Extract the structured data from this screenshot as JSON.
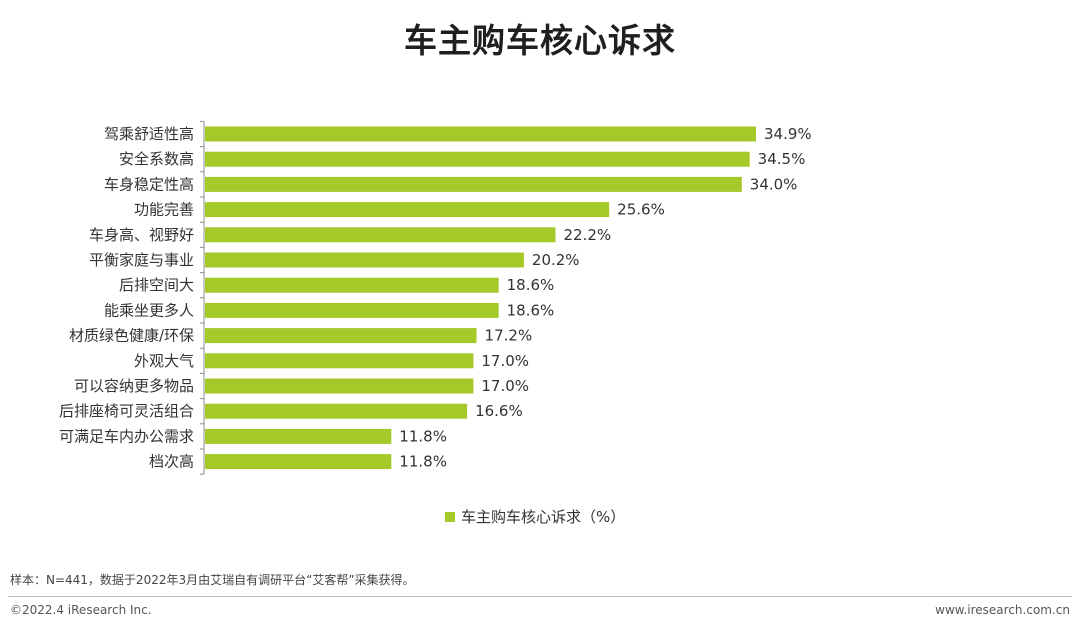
{
  "page": {
    "title": "车主购车核心诉求",
    "source_note": "样本：N=441，数据于2022年3月由艾瑞自有调研平台“艾客帮”采集获得。",
    "copyright": "©2022.4 iResearch Inc.",
    "website": "www.iresearch.com.cn"
  },
  "colors": {
    "bar": "#a4c929",
    "axis": "#8c8c8c"
  },
  "chart_data": {
    "type": "bar",
    "orientation": "horizontal",
    "title": "车主购车核心诉求",
    "categories": [
      "驾乘舒适性高",
      "安全系数高",
      "车身稳定性高",
      "功能完善",
      "车身高、视野好",
      "平衡家庭与事业",
      "后排空间大",
      "能乘坐更多人",
      "材质绿色健康/环保",
      "外观大气",
      "可以容纳更多物品",
      "后排座椅可灵活组合",
      "可满足车内办公需求",
      "档次高"
    ],
    "values": [
      34.9,
      34.5,
      34.0,
      25.6,
      22.2,
      20.2,
      18.6,
      18.6,
      17.2,
      17.0,
      17.0,
      16.6,
      11.8,
      11.8
    ],
    "value_labels": [
      "34.9%",
      "34.5%",
      "34.0%",
      "25.6%",
      "22.2%",
      "20.2%",
      "18.6%",
      "18.6%",
      "17.2%",
      "17.0%",
      "17.0%",
      "16.6%",
      "11.8%",
      "11.8%"
    ],
    "series_name": "车主购车核心诉求（%）",
    "xlim": [
      0,
      34.9
    ],
    "legend_position": "bottom",
    "grid": false
  }
}
